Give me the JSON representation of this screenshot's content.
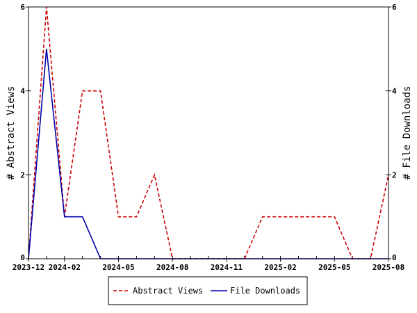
{
  "chart_data": {
    "type": "line",
    "x": [
      "2023-12",
      "2024-01",
      "2024-02",
      "2024-03",
      "2024-04",
      "2024-05",
      "2024-06",
      "2024-07",
      "2024-08",
      "2024-09",
      "2024-10",
      "2024-11",
      "2024-12",
      "2025-01",
      "2025-02",
      "2025-03",
      "2025-04",
      "2025-05",
      "2025-06",
      "2025-07",
      "2025-08"
    ],
    "x_tick_labels": [
      "2023-12",
      "2024-02",
      "2024-05",
      "2024-08",
      "2024-11",
      "2025-02",
      "2025-05",
      "2025-08"
    ],
    "series": [
      {
        "name": "Abstract Views",
        "axis": "left",
        "color": "#cc0000",
        "style": "dashed",
        "values": [
          0,
          6,
          1,
          4,
          4,
          1,
          1,
          2,
          0,
          0,
          0,
          0,
          0,
          1,
          1,
          1,
          1,
          1,
          0,
          0,
          2
        ]
      },
      {
        "name": "File Downloads",
        "axis": "right",
        "color": "#0000aa",
        "style": "solid",
        "values": [
          0,
          5,
          1,
          1,
          0,
          0,
          0,
          0,
          0,
          0,
          0,
          0,
          0,
          0,
          0,
          0,
          0,
          0,
          0,
          0,
          0
        ]
      }
    ],
    "ylabel_left": "# Abstract Views",
    "ylabel_right": "# File Downloads",
    "ylim": [
      0,
      6
    ],
    "y_ticks": [
      0,
      2,
      4,
      6
    ],
    "grid": false,
    "legend_placement": "bottom"
  }
}
